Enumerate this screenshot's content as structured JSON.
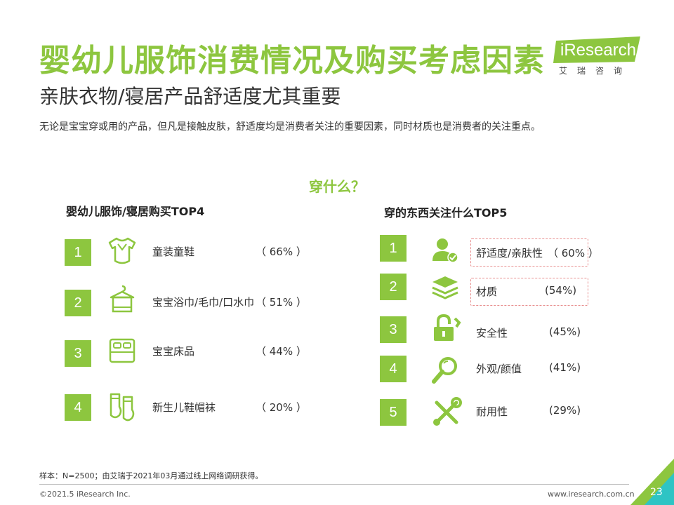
{
  "header": {
    "title": "婴幼儿服饰消费情况及购买考虑因素",
    "subtitle": "亲肤衣物/寝居产品舒适度尤其重要",
    "description": "无论是宝宝穿或用的产品，但凡是接触皮肤，舒适度均是消费者关注的重要因素，同时材质也是消费者的关注重点。"
  },
  "logo": {
    "text": "iResearch",
    "sub": "艾瑞咨询"
  },
  "question": "穿什么？",
  "left": {
    "title": "婴幼儿服饰/寝居购买TOP4",
    "items": [
      {
        "rank": "1",
        "label": "童装童鞋",
        "pct": "（ 66% ）",
        "icon": "baby-bodysuit-icon"
      },
      {
        "rank": "2",
        "label": "宝宝浴巾/毛巾/口水巾",
        "pct": "（ 51% ）",
        "icon": "towel-hanger-icon"
      },
      {
        "rank": "3",
        "label": "宝宝床品",
        "pct": "（ 44% ）",
        "icon": "bed-icon"
      },
      {
        "rank": "4",
        "label": "新生儿鞋帽袜",
        "pct": "（ 20% ）",
        "icon": "baby-socks-icon"
      }
    ]
  },
  "right": {
    "title": "穿的东西关注什么TOP5",
    "items": [
      {
        "rank": "1",
        "label": "舒适度/亲肤性",
        "pct": "（ 60% ）",
        "icon": "user-check-icon"
      },
      {
        "rank": "2",
        "label": "材质",
        "pct": "(54%)",
        "icon": "layers-icon"
      },
      {
        "rank": "3",
        "label": "安全性",
        "pct": "(45%)",
        "icon": "lock-icon"
      },
      {
        "rank": "4",
        "label": "外观/颜值",
        "pct": "(41%)",
        "icon": "magnifier-icon"
      },
      {
        "rank": "5",
        "label": "耐用性",
        "pct": "(29%)",
        "icon": "tools-icon"
      }
    ]
  },
  "footer": {
    "sample": "样本：N=2500；由艾瑞于2021年03月通过线上网络调研获得。",
    "copyright": "©2021.5 iResearch Inc.",
    "website": "www.iresearch.com.cn",
    "page": "23"
  },
  "colors": {
    "accent": "#8dc63f",
    "highlight": "#e89090"
  }
}
